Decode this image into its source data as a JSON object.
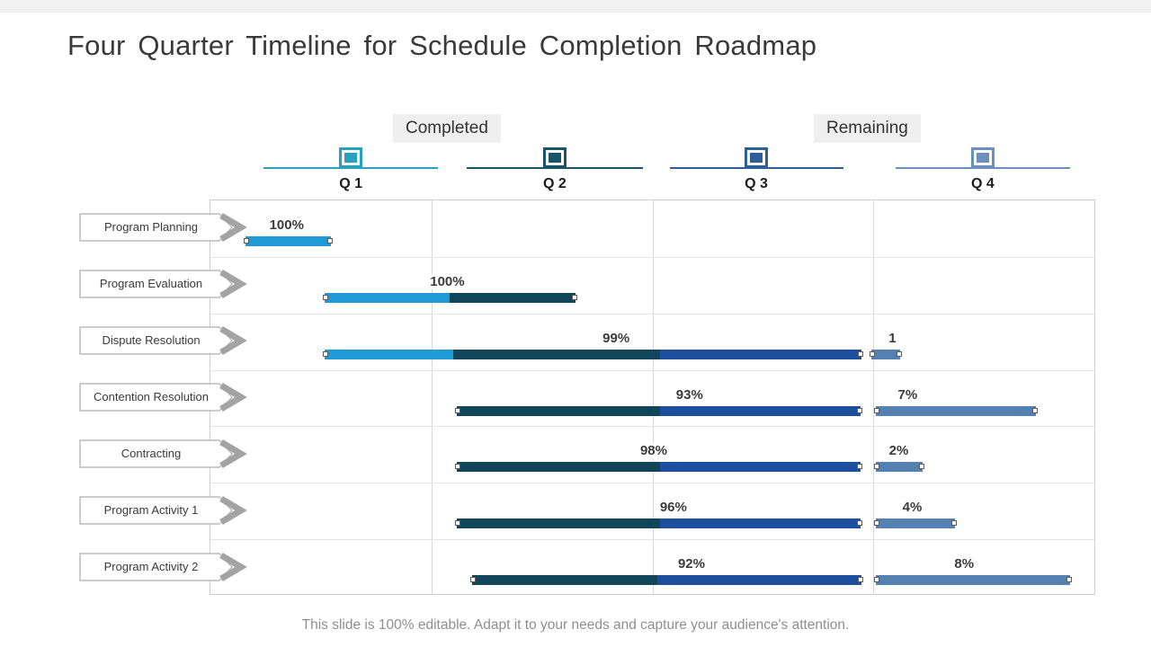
{
  "page": {
    "title": "Four Quarter Timeline for Schedule Completion Roadmap",
    "footer": "This slide is 100% editable. Adapt it to your needs and capture your audience's attention."
  },
  "legend": {
    "completed": "Completed",
    "remaining": "Remaining"
  },
  "colors": {
    "q1": "#1E9BD7",
    "q2": "#11465A",
    "q3": "#1C4F9D",
    "q4": "#5581B2",
    "axis_q1": "#28A0BE",
    "axis_q2": "#1A5468",
    "axis_q3": "#2F5F98",
    "axis_q4": "#6C90BE"
  },
  "chart_data": {
    "type": "gantt-timeline",
    "title": "Four Quarter Timeline for Schedule Completion Roadmap",
    "legend": [
      "Completed",
      "Remaining"
    ],
    "x_axis": {
      "unit": "quarters",
      "range": [
        0,
        4
      ],
      "gridlines_at": [
        1,
        2,
        3
      ],
      "groups": [
        {
          "label": "Q 1",
          "color_key": "axis_q1",
          "line_start": 0.244,
          "line_end": 1.031,
          "center": 0.638
        },
        {
          "label": "Q 2",
          "color_key": "axis_q2",
          "line_start": 1.161,
          "line_end": 1.957,
          "center": 1.559
        },
        {
          "label": "Q 3",
          "color_key": "axis_q3",
          "line_start": 2.079,
          "line_end": 2.863,
          "center": 2.469
        },
        {
          "label": "Q 4",
          "color_key": "axis_q4",
          "line_start": 3.098,
          "line_end": 3.886,
          "center": 3.492
        }
      ]
    },
    "rows": [
      {
        "label": "Program Planning",
        "completed": {
          "label": "100%",
          "value": 100,
          "label_center": 0.345,
          "segments": [
            {
              "color_key": "q1",
              "start": 0.158,
              "end": 0.544
            }
          ]
        },
        "remaining": null
      },
      {
        "label": "Program Evaluation",
        "completed": {
          "label": "100%",
          "value": 100,
          "label_center": 1.072,
          "segments": [
            {
              "color_key": "q1",
              "start": 0.516,
              "end": 1.084
            },
            {
              "color_key": "q2",
              "start": 1.084,
              "end": 1.653
            }
          ]
        },
        "remaining": null
      },
      {
        "label": "Dispute Resolution",
        "completed": {
          "label": "99%",
          "value": 99,
          "label_center": 1.836,
          "segments": [
            {
              "color_key": "q1",
              "start": 0.516,
              "end": 1.1
            },
            {
              "color_key": "q2",
              "start": 1.1,
              "end": 2.034
            },
            {
              "color_key": "q3",
              "start": 2.034,
              "end": 2.948
            }
          ]
        },
        "remaining": {
          "label": "1",
          "value": 1,
          "label_center": 3.086,
          "color_key": "q4",
          "start": 2.99,
          "end": 3.12
        }
      },
      {
        "label": "Contention  Resolution",
        "completed": {
          "label": "93%",
          "value": 93,
          "label_center": 2.168,
          "segments": [
            {
              "color_key": "q2",
              "start": 1.113,
              "end": 2.034
            },
            {
              "color_key": "q3",
              "start": 2.034,
              "end": 2.944
            }
          ]
        },
        "remaining": {
          "label": "7%",
          "value": 7,
          "label_center": 3.155,
          "color_key": "q4",
          "start": 3.013,
          "end": 3.736
        }
      },
      {
        "label": "Contracting",
        "completed": {
          "label": "98%",
          "value": 98,
          "label_center": 2.006,
          "segments": [
            {
              "color_key": "q2",
              "start": 1.113,
              "end": 2.034
            },
            {
              "color_key": "q3",
              "start": 2.034,
              "end": 2.944
            }
          ]
        },
        "remaining": {
          "label": "2%",
          "value": 2,
          "label_center": 3.115,
          "color_key": "q4",
          "start": 3.013,
          "end": 3.224
        }
      },
      {
        "label": "Program Activity 1",
        "completed": {
          "label": "96%",
          "value": 96,
          "label_center": 2.095,
          "segments": [
            {
              "color_key": "q2",
              "start": 1.113,
              "end": 2.034
            },
            {
              "color_key": "q3",
              "start": 2.034,
              "end": 2.944
            }
          ]
        },
        "remaining": {
          "label": "4%",
          "value": 4,
          "label_center": 3.176,
          "color_key": "q4",
          "start": 3.013,
          "end": 3.371
        }
      },
      {
        "label": "Program Activity 2",
        "completed": {
          "label": "92%",
          "value": 92,
          "label_center": 2.177,
          "segments": [
            {
              "color_key": "q2",
              "start": 1.186,
              "end": 2.022
            },
            {
              "color_key": "q3",
              "start": 2.022,
              "end": 2.948
            }
          ]
        },
        "remaining": {
          "label": "8%",
          "value": 8,
          "label_center": 3.411,
          "color_key": "q4",
          "start": 3.013,
          "end": 3.89
        }
      }
    ]
  }
}
